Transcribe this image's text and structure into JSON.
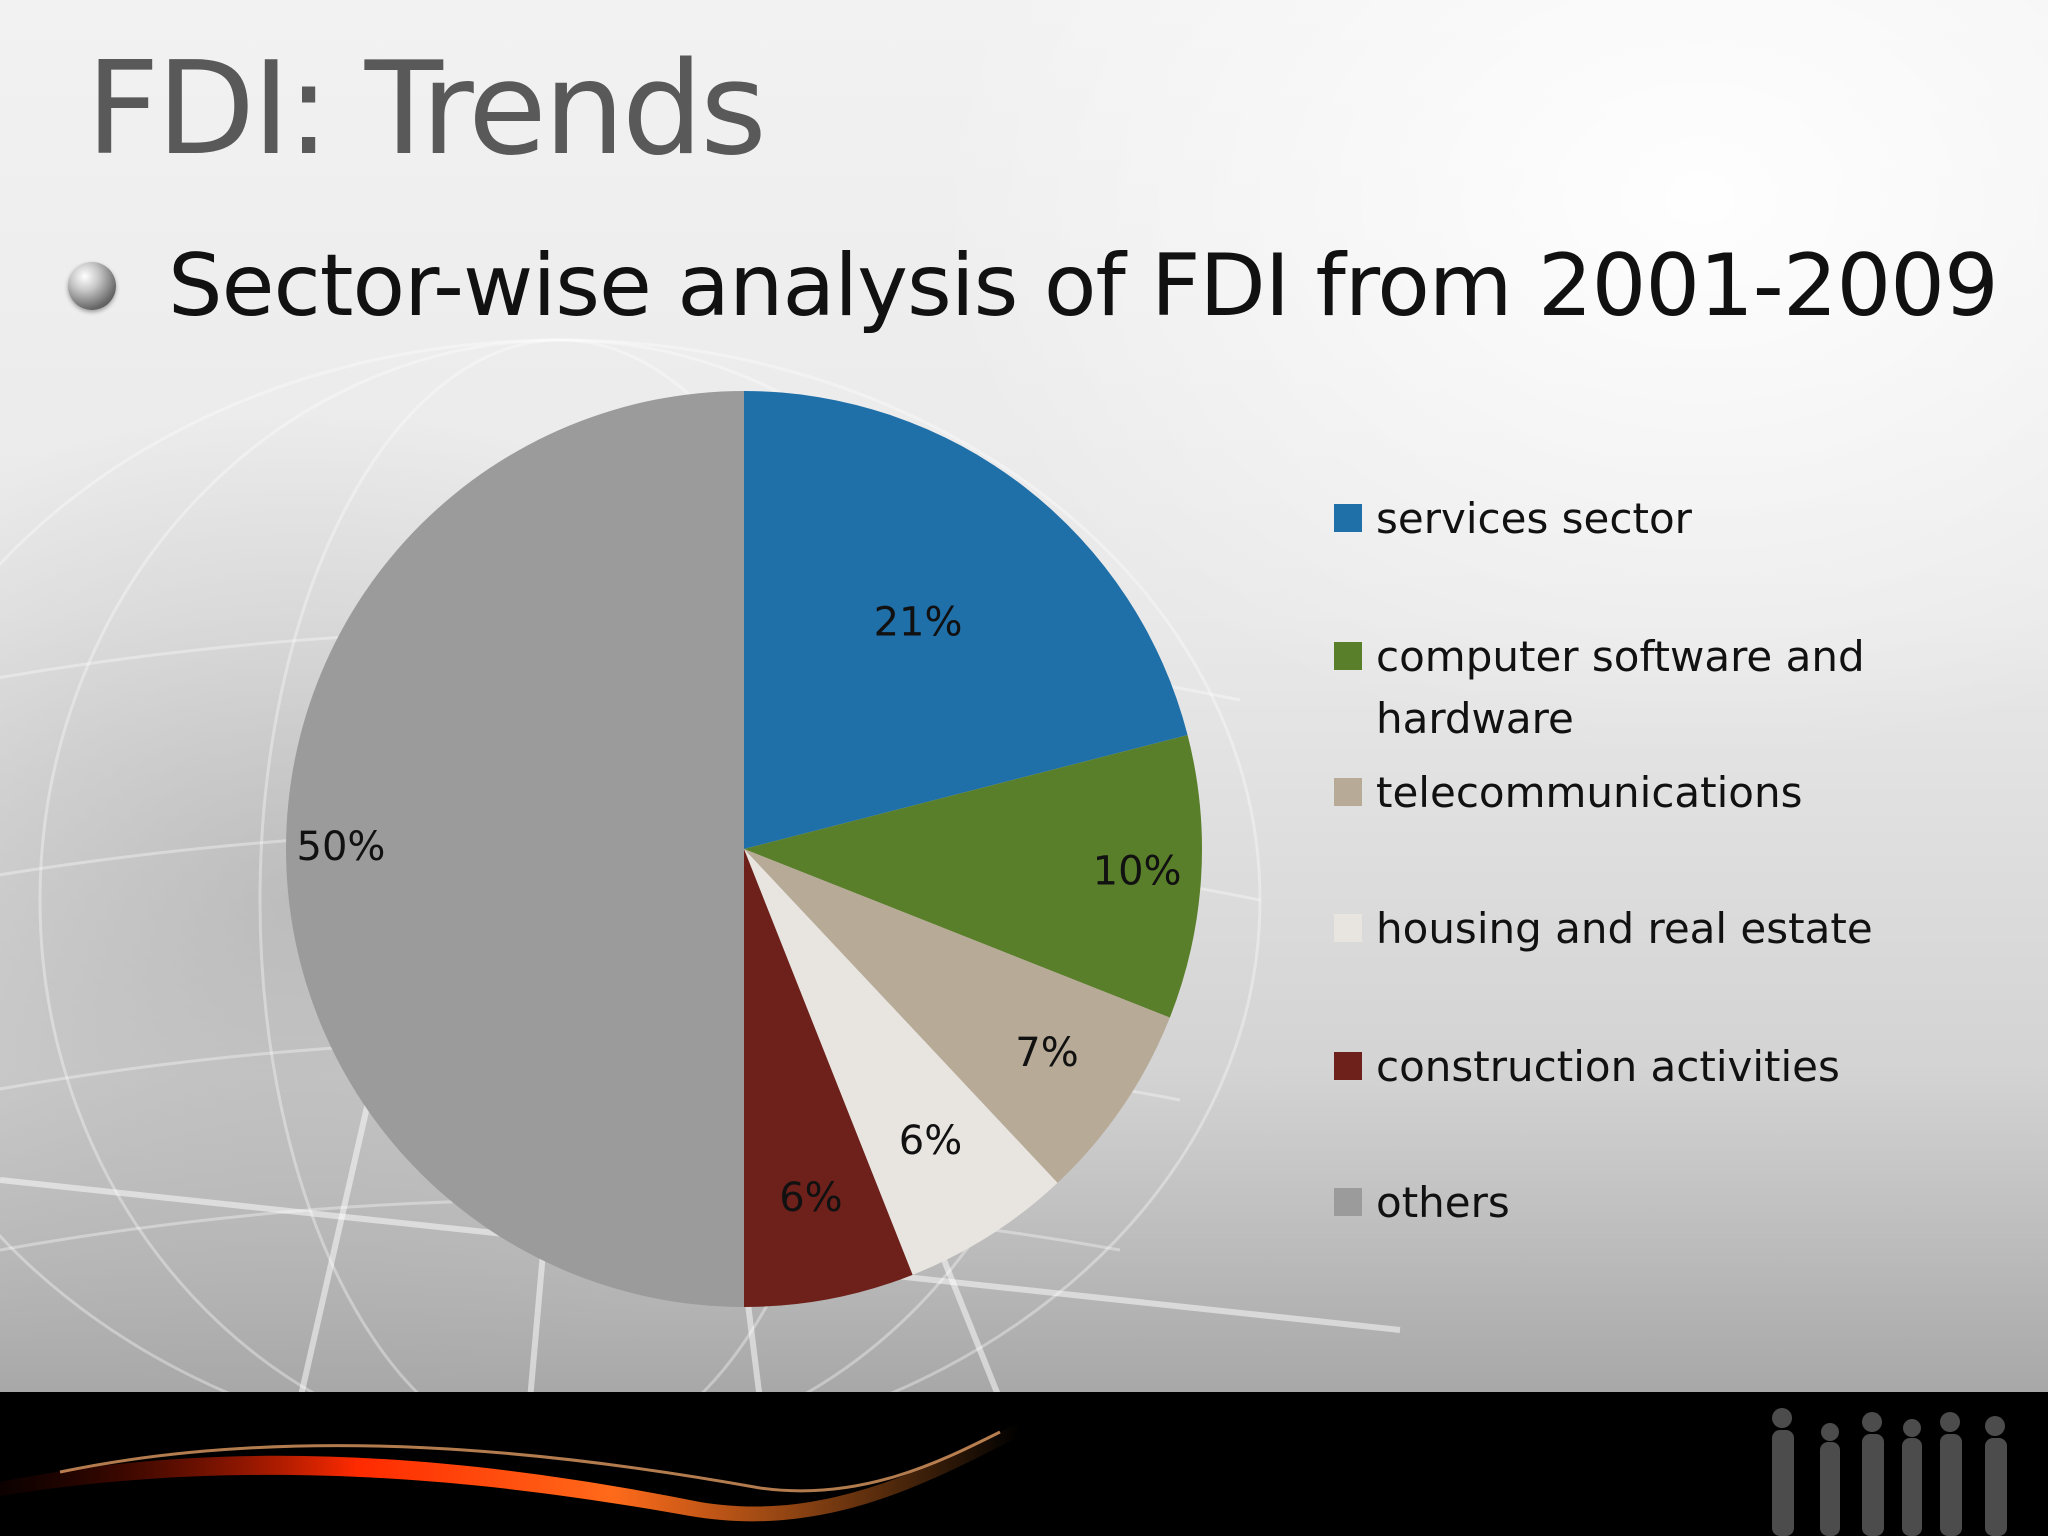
{
  "slide": {
    "title": "FDI: Trends",
    "bullet": "Sector-wise analysis of FDI from 2001-2009"
  },
  "chart_data": {
    "type": "pie",
    "title": "",
    "slices": [
      {
        "name": "services sector",
        "value": 21,
        "label": "21%",
        "color": "#1f6fa9"
      },
      {
        "name": "computer software and hardware",
        "value": 10,
        "label": "10%",
        "color": "#5a7f2a"
      },
      {
        "name": "telecommunications",
        "value": 7,
        "label": "7%",
        "color": "#b7aa97"
      },
      {
        "name": "housing and real estate",
        "value": 6,
        "label": "6%",
        "color": "#e8e5e1"
      },
      {
        "name": "construction activities",
        "value": 6,
        "label": "6%",
        "color": "#6e211a"
      },
      {
        "name": "others",
        "value": 50,
        "label": "50%",
        "color": "#9b9b9b"
      }
    ],
    "legend_position": "right"
  },
  "colors": {
    "title": "#595959",
    "footer": "#000000",
    "accent_swoosh": "#ff3b0a"
  }
}
